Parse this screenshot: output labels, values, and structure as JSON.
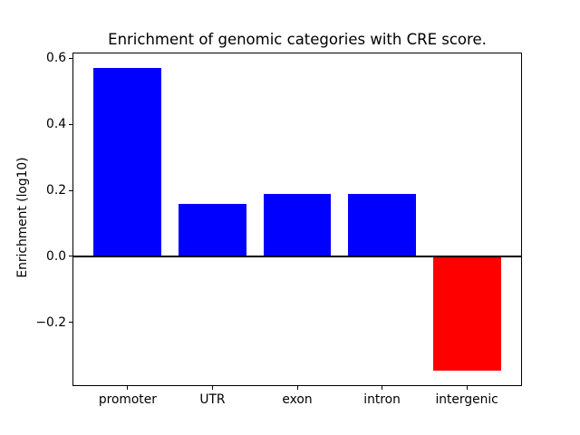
{
  "chart_data": {
    "type": "bar",
    "title": "Enrichment of genomic categories with CRE score.",
    "xlabel": "",
    "ylabel": "Enrichment (log10)",
    "categories": [
      "promoter",
      "UTR",
      "exon",
      "intron",
      "intergenic"
    ],
    "values": [
      0.57,
      0.16,
      0.19,
      0.19,
      -0.345
    ],
    "bar_colors": [
      "#0000ff",
      "#0000ff",
      "#0000ff",
      "#0000ff",
      "#ff0000"
    ],
    "positive_color": "#0000ff",
    "negative_color": "#ff0000",
    "bar_width": 0.8,
    "ylim": [
      -0.39,
      0.615
    ],
    "xlim": [
      -0.64,
      4.64
    ],
    "yticks": [
      0.6,
      0.4,
      0.2,
      0.0,
      -0.2
    ],
    "ytick_labels": [
      "0.6",
      "0.4",
      "0.2",
      "0.0",
      "−0.2"
    ],
    "zero_line": true,
    "grid": false,
    "legend": null,
    "background_color": "#ffffff",
    "axis_color": "#000000"
  }
}
